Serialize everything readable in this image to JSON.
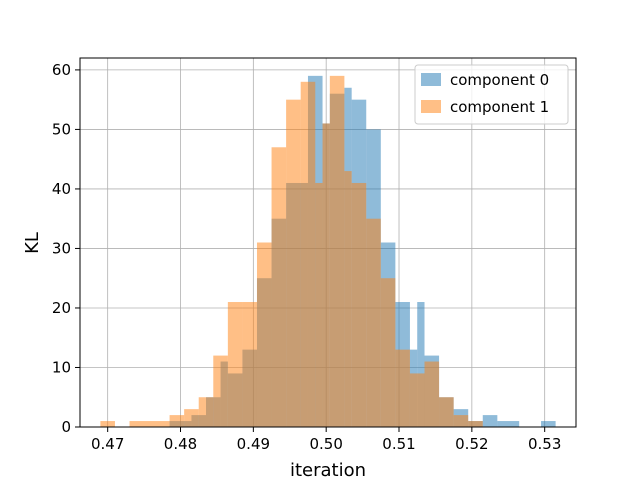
{
  "chart_data": {
    "type": "bar",
    "title": "",
    "xlabel": "iteration",
    "ylabel": "KL",
    "xlim": [
      0.4662,
      0.5343
    ],
    "ylim": [
      0,
      62
    ],
    "xticks": [
      0.47,
      0.48,
      0.49,
      0.5,
      0.51,
      0.52,
      0.53
    ],
    "xtick_labels": [
      "0.47",
      "0.48",
      "0.49",
      "0.50",
      "0.51",
      "0.52",
      "0.53"
    ],
    "yticks": [
      0,
      10,
      20,
      30,
      40,
      50,
      60
    ],
    "ytick_labels": [
      "0",
      "10",
      "20",
      "30",
      "40",
      "50",
      "60"
    ],
    "grid": true,
    "legend_position": "top-right",
    "series": [
      {
        "name": "component 0",
        "color": "#1f77b4",
        "alpha": 0.5,
        "bins": [
          [
            0.4785,
            0.4815,
            1
          ],
          [
            0.4815,
            0.4835,
            2
          ],
          [
            0.4835,
            0.4855,
            5
          ],
          [
            0.4855,
            0.4865,
            11
          ],
          [
            0.4865,
            0.4885,
            9
          ],
          [
            0.4885,
            0.4905,
            13
          ],
          [
            0.4905,
            0.4925,
            25
          ],
          [
            0.4925,
            0.4945,
            35
          ],
          [
            0.4945,
            0.4975,
            41
          ],
          [
            0.4975,
            0.4995,
            59
          ],
          [
            0.4995,
            0.5005,
            51
          ],
          [
            0.5005,
            0.5025,
            56
          ],
          [
            0.5025,
            0.5035,
            57
          ],
          [
            0.5035,
            0.5055,
            55
          ],
          [
            0.5055,
            0.5075,
            50
          ],
          [
            0.5075,
            0.5095,
            31
          ],
          [
            0.5095,
            0.5115,
            21
          ],
          [
            0.5115,
            0.5125,
            13
          ],
          [
            0.5125,
            0.5135,
            21
          ],
          [
            0.5135,
            0.5155,
            12
          ],
          [
            0.5155,
            0.5175,
            5
          ],
          [
            0.5175,
            0.5195,
            3
          ],
          [
            0.5195,
            0.5215,
            1
          ],
          [
            0.5215,
            0.5235,
            2
          ],
          [
            0.5235,
            0.5265,
            1
          ],
          [
            0.5295,
            0.5315,
            1
          ]
        ]
      },
      {
        "name": "component 1",
        "color": "#ff7f0e",
        "alpha": 0.5,
        "bins": [
          [
            0.469,
            0.471,
            1
          ],
          [
            0.473,
            0.4765,
            1
          ],
          [
            0.4765,
            0.4785,
            1
          ],
          [
            0.4785,
            0.4805,
            2
          ],
          [
            0.4805,
            0.4825,
            3
          ],
          [
            0.4825,
            0.4845,
            5
          ],
          [
            0.4845,
            0.4865,
            12
          ],
          [
            0.4865,
            0.4885,
            21
          ],
          [
            0.4885,
            0.4905,
            21
          ],
          [
            0.4905,
            0.4925,
            31
          ],
          [
            0.4925,
            0.4945,
            47
          ],
          [
            0.4945,
            0.4965,
            55
          ],
          [
            0.4965,
            0.4985,
            58
          ],
          [
            0.4985,
            0.4995,
            41
          ],
          [
            0.4995,
            0.5005,
            51
          ],
          [
            0.5005,
            0.5025,
            59
          ],
          [
            0.5025,
            0.5035,
            43
          ],
          [
            0.5035,
            0.5055,
            41
          ],
          [
            0.5055,
            0.5075,
            35
          ],
          [
            0.5075,
            0.5095,
            25
          ],
          [
            0.5095,
            0.5115,
            13
          ],
          [
            0.5115,
            0.5135,
            9
          ],
          [
            0.5135,
            0.5155,
            11
          ],
          [
            0.5155,
            0.5175,
            5
          ],
          [
            0.5175,
            0.5195,
            2
          ],
          [
            0.5195,
            0.5215,
            1
          ]
        ]
      }
    ]
  }
}
